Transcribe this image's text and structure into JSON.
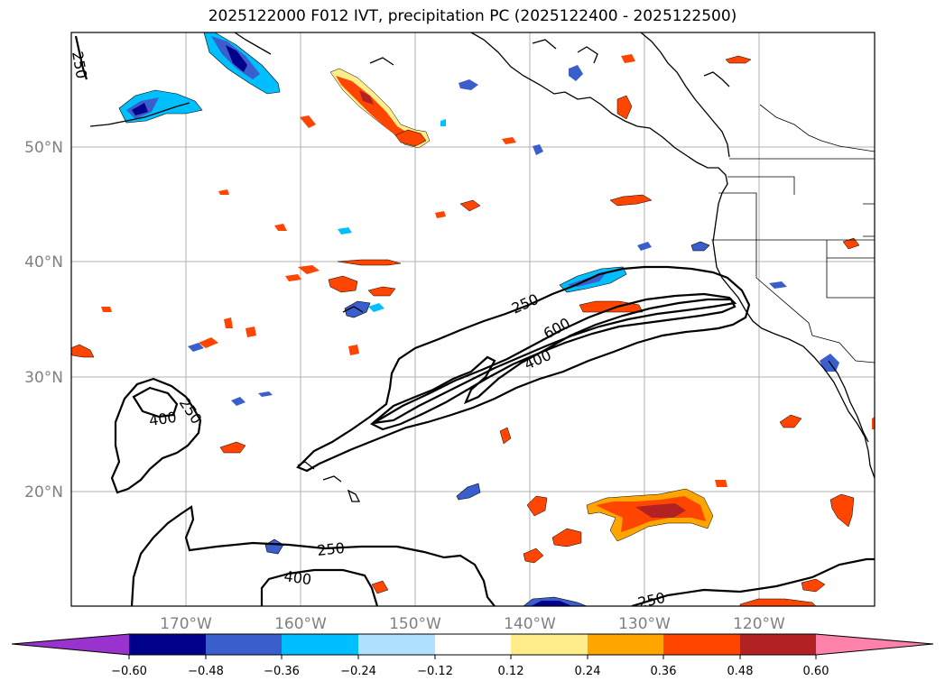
{
  "title": "2025122000 F012 IVT, precipitation PC (2025122400 - 2025122500)",
  "map": {
    "lon_ticks": [
      "170°W",
      "160°W",
      "150°W",
      "140°W",
      "130°W",
      "120°W"
    ],
    "lat_ticks": [
      "50°N",
      "40°N",
      "30°N",
      "20°N"
    ],
    "contour_labels": [
      "250",
      "250",
      "600",
      "400",
      "400",
      "250",
      "250",
      "400",
      "250"
    ]
  },
  "colorbar": {
    "ticks": [
      "−0.60",
      "−0.48",
      "−0.36",
      "−0.24",
      "−0.12",
      "0.12",
      "0.24",
      "0.36",
      "0.48",
      "0.60"
    ],
    "colors": [
      "#9a32cd",
      "#00008b",
      "#3a5fcd",
      "#00bfff",
      "#b0e2ff",
      "#ffffff",
      "#ffec8b",
      "#ffa500",
      "#ff4500",
      "#b22222",
      "#ff82ab"
    ]
  }
}
